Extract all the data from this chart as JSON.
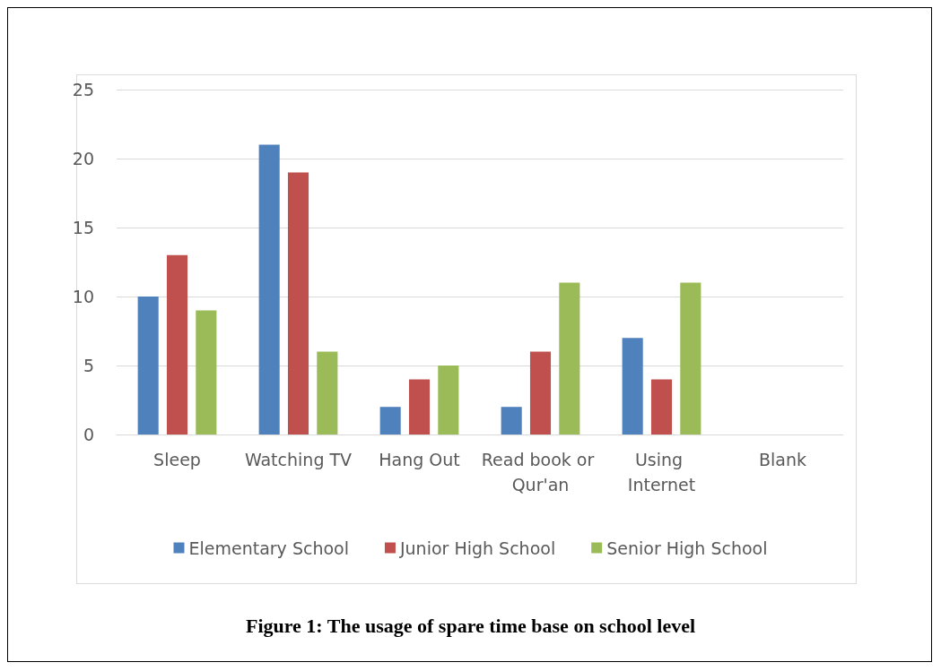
{
  "chart_data": {
    "type": "bar",
    "categories": [
      "Sleep",
      "Watching TV",
      "Hang Out",
      "Read book or Qur'an",
      "Using Internet",
      "Blank"
    ],
    "series": [
      {
        "name": "Elementary School",
        "color": "#4f81bd",
        "values": [
          10,
          21,
          2,
          2,
          7,
          null
        ]
      },
      {
        "name": "Junior High School",
        "color": "#c0504d",
        "values": [
          13,
          19,
          4,
          6,
          4,
          null
        ]
      },
      {
        "name": "Senior High School",
        "color": "#9bbb59",
        "values": [
          9,
          6,
          5,
          11,
          11,
          null
        ]
      }
    ],
    "ylim": [
      0,
      25
    ],
    "yticks": [
      0,
      5,
      10,
      15,
      20,
      25
    ],
    "grid": "y",
    "legend": "bottom",
    "annotations": [
      "Figure 1: The usage of spare time base on school level"
    ]
  }
}
